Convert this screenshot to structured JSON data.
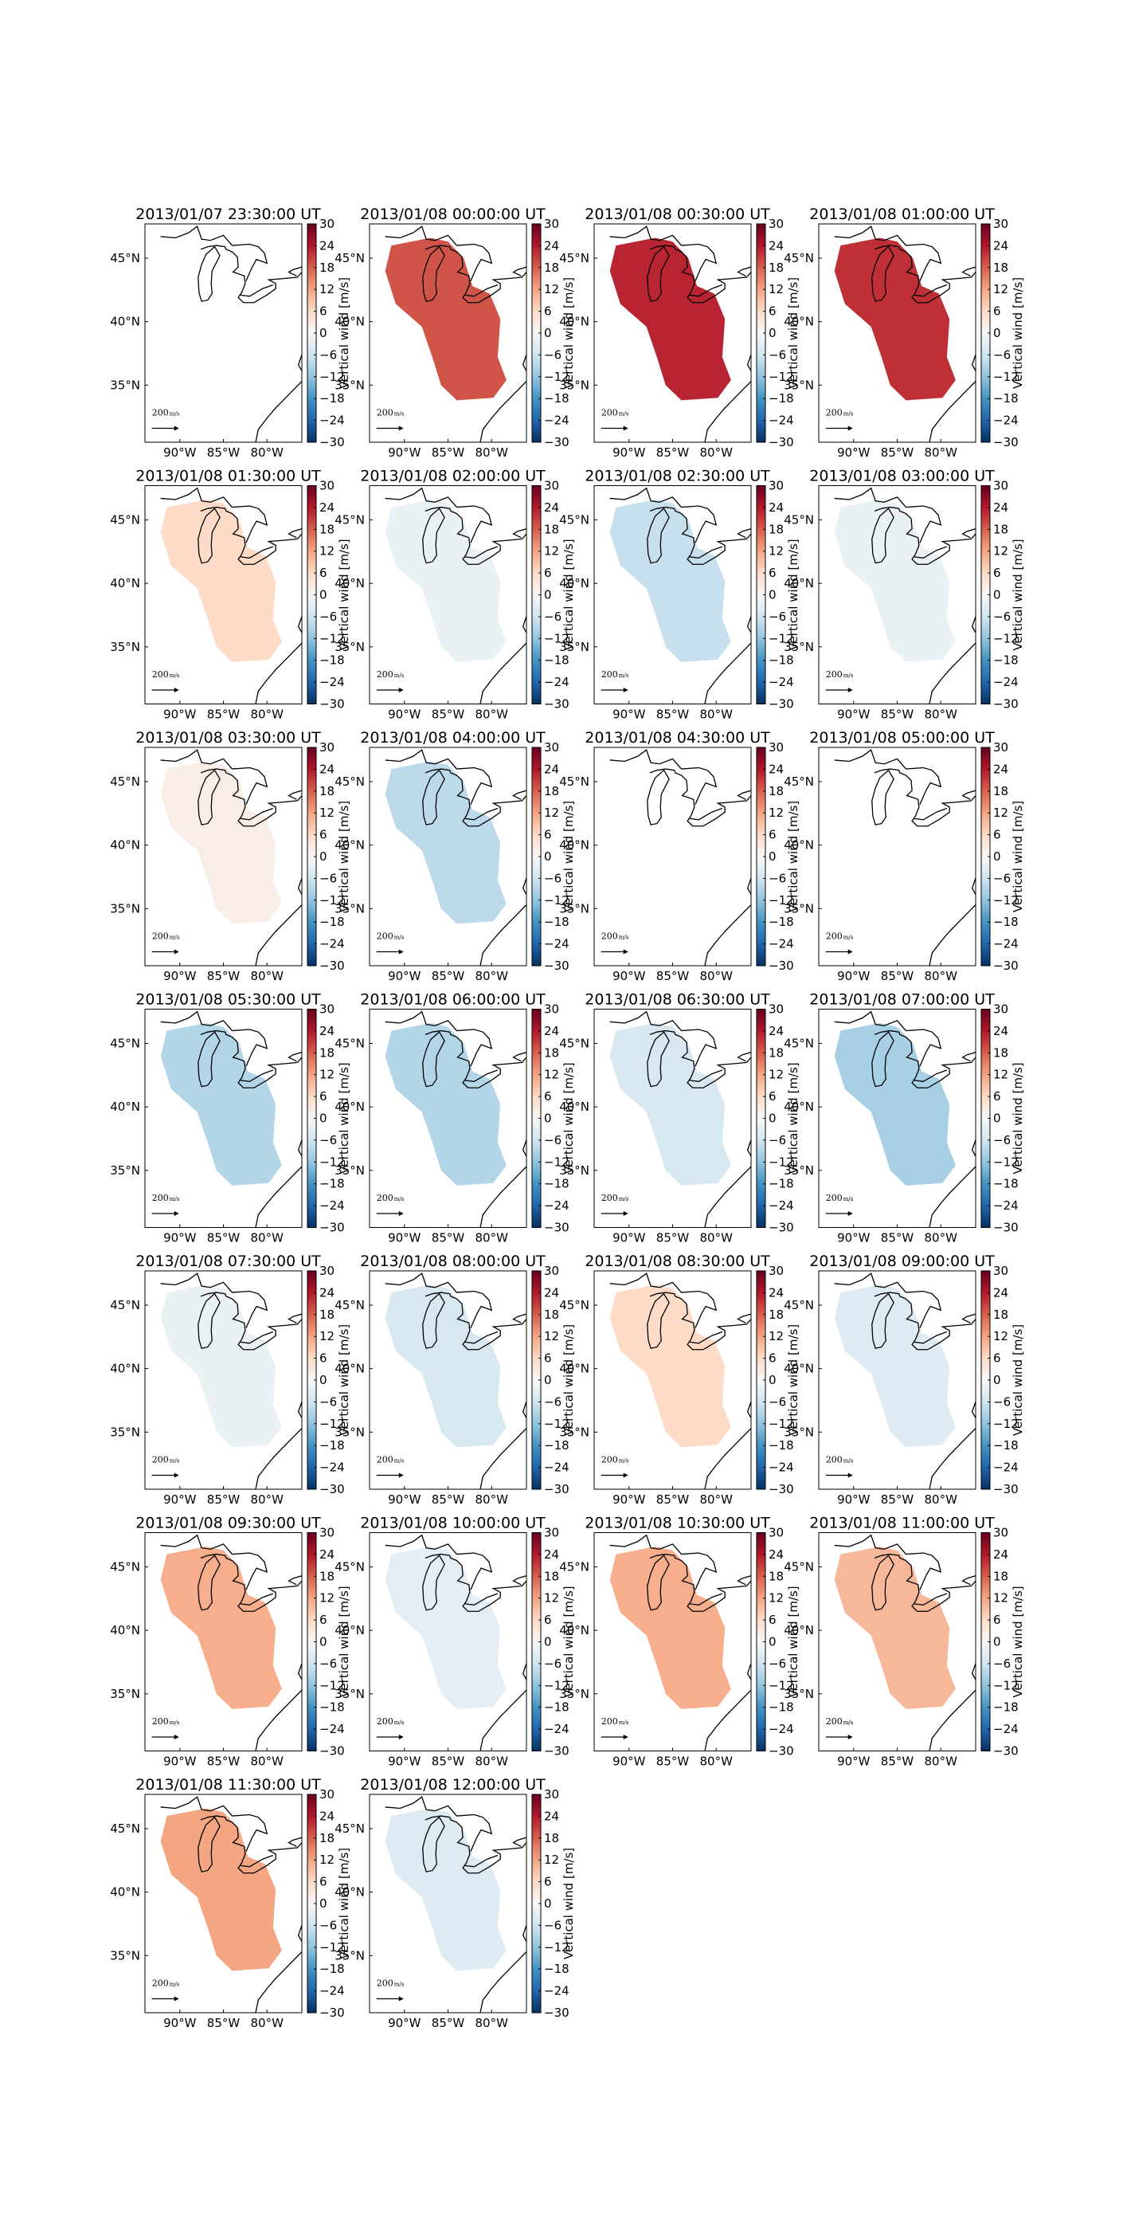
{
  "chart_data": {
    "type": "map",
    "xlim": [
      -94,
      -76
    ],
    "ylim": [
      30.5,
      47.7
    ],
    "xticks": [
      {
        "value": -90,
        "label": "90°W"
      },
      {
        "value": -85,
        "label": "85°W"
      },
      {
        "value": -80,
        "label": "80°W"
      }
    ],
    "yticks": [
      {
        "value": 35,
        "label": "35°N"
      },
      {
        "value": 40,
        "label": "40°N"
      },
      {
        "value": 45,
        "label": "45°N"
      }
    ],
    "colorbar": {
      "label": "Vertical wind [m/s]",
      "lim": [
        -30,
        30
      ],
      "ticks": [
        {
          "value": -30,
          "label": "−30"
        },
        {
          "value": -24,
          "label": "−24"
        },
        {
          "value": -18,
          "label": "−18"
        },
        {
          "value": -12,
          "label": "−12"
        },
        {
          "value": -6,
          "label": "−6"
        },
        0,
        6,
        12,
        18,
        24,
        30
      ]
    },
    "quiver_key": {
      "value": 200,
      "unit": "m/s"
    },
    "panels": [
      {
        "title": "2013/01/07 23:30:00 UT",
        "value": null
      },
      {
        "title": "2013/01/08 00:00:00 UT",
        "value": 19
      },
      {
        "title": "2013/01/08 00:30:00 UT",
        "value": 23
      },
      {
        "title": "2013/01/08 01:00:00 UT",
        "value": 22
      },
      {
        "title": "2013/01/08 01:30:00 UT",
        "value": 6
      },
      {
        "title": "2013/01/08 02:00:00 UT",
        "value": -2
      },
      {
        "title": "2013/01/08 02:30:00 UT",
        "value": -7
      },
      {
        "title": "2013/01/08 03:00:00 UT",
        "value": -2
      },
      {
        "title": "2013/01/08 03:30:00 UT",
        "value": 2
      },
      {
        "title": "2013/01/08 04:00:00 UT",
        "value": -8
      },
      {
        "title": "2013/01/08 04:30:00 UT",
        "value": null
      },
      {
        "title": "2013/01/08 05:00:00 UT",
        "value": null
      },
      {
        "title": "2013/01/08 05:30:00 UT",
        "value": -9
      },
      {
        "title": "2013/01/08 06:00:00 UT",
        "value": -9
      },
      {
        "title": "2013/01/08 06:30:00 UT",
        "value": -5
      },
      {
        "title": "2013/01/08 07:00:00 UT",
        "value": -10
      },
      {
        "title": "2013/01/08 07:30:00 UT",
        "value": -2
      },
      {
        "title": "2013/01/08 08:00:00 UT",
        "value": -5
      },
      {
        "title": "2013/01/08 08:30:00 UT",
        "value": 6
      },
      {
        "title": "2013/01/08 09:00:00 UT",
        "value": -4
      },
      {
        "title": "2013/01/08 09:30:00 UT",
        "value": 11
      },
      {
        "title": "2013/01/08 10:00:00 UT",
        "value": -3
      },
      {
        "title": "2013/01/08 10:30:00 UT",
        "value": 11
      },
      {
        "title": "2013/01/08 11:00:00 UT",
        "value": 10
      },
      {
        "title": "2013/01/08 11:30:00 UT",
        "value": 12
      },
      {
        "title": "2013/01/08 12:00:00 UT",
        "value": -4
      }
    ]
  }
}
